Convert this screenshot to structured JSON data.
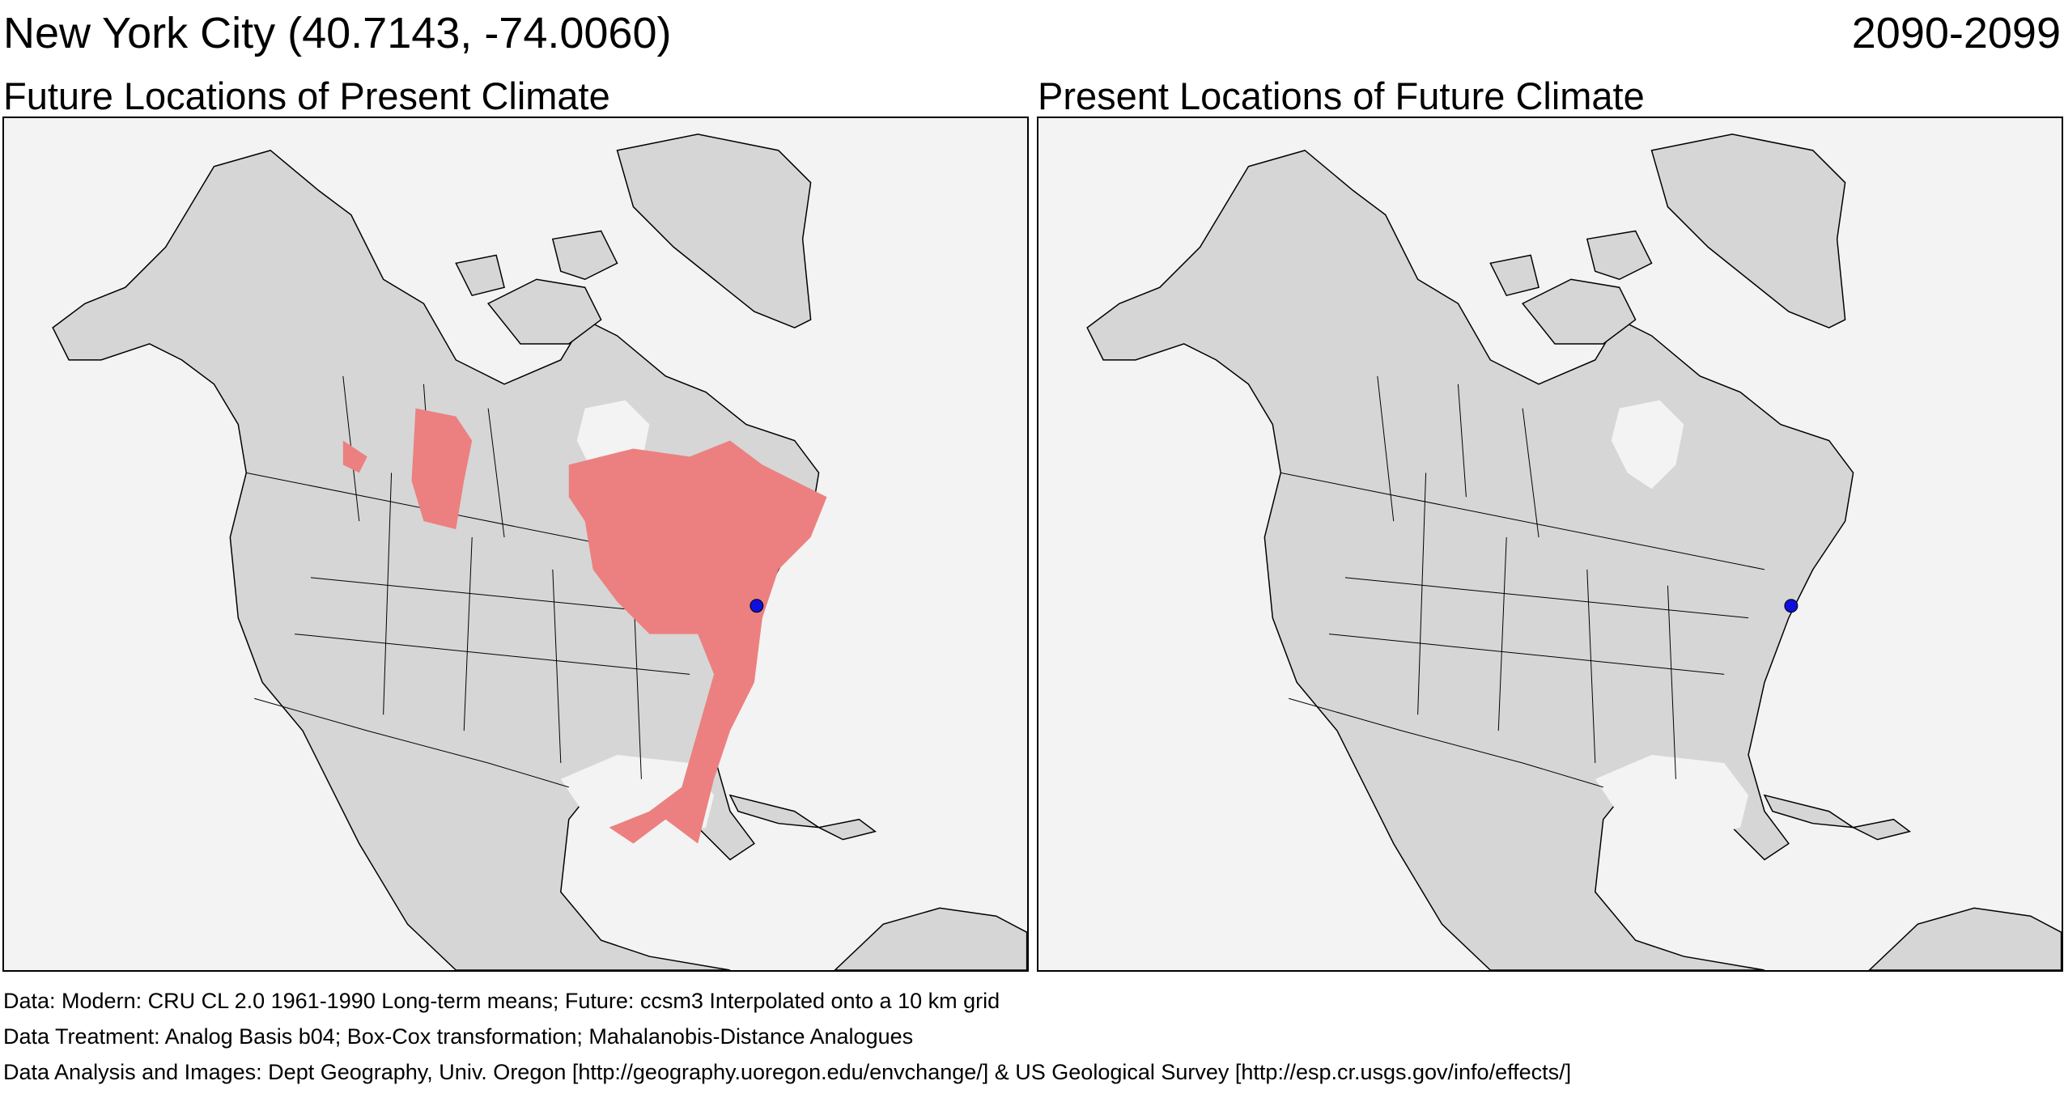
{
  "header": {
    "location_title": "New York City  (40.7143, -74.0060)",
    "period": "2090-2099"
  },
  "panels": [
    {
      "title": "Future Locations of Present Climate",
      "shows_analog_region": true
    },
    {
      "title": "Present Locations of Future Climate",
      "shows_analog_region": false
    }
  ],
  "footer": {
    "data": "Data:  Modern: CRU CL 2.0 1961-1990 Long-term means; Future: ccsm3 Interpolated onto a 10 km grid",
    "treatment": "Data Treatment:  Analog Basis b04; Box-Cox transformation; Mahalanobis-Distance Analogues",
    "analysis": "Data Analysis and Images:  Dept Geography, Univ. Oregon [http://geography.uoregon.edu/envchange/] & US Geological Survey [http://esp.cr.usgs.gov/info/effects/]"
  },
  "colors": {
    "ocean": "#f3f3f3",
    "land": "#d6d6d6",
    "analog_region": "#ec8080",
    "location_marker": "#1010dd",
    "boundaries": "#000000"
  }
}
